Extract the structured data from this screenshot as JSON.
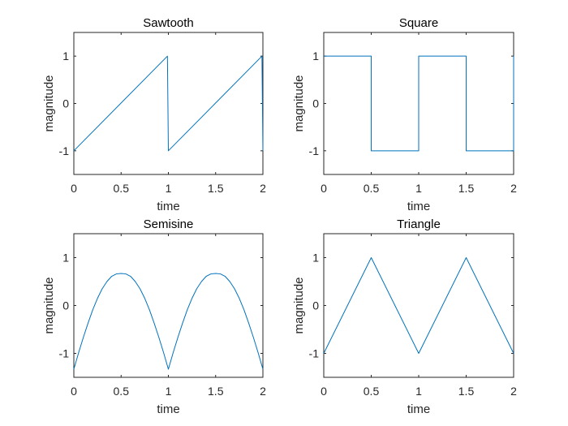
{
  "chart_data": [
    {
      "type": "line",
      "title": "Sawtooth",
      "xlabel": "time",
      "ylabel": "magnitude",
      "xlim": [
        0,
        2
      ],
      "ylim": [
        -1.5,
        1.5
      ],
      "xticks": [
        0,
        0.5,
        1,
        1.5,
        2
      ],
      "xtick_labels": [
        "0",
        "0.5",
        "1",
        "1.5",
        "2"
      ],
      "yticks": [
        -1,
        0,
        1
      ],
      "ytick_labels": [
        "-1",
        "0",
        "1"
      ],
      "grid": false,
      "color": "#0072BD",
      "series": [
        {
          "x": [
            0,
            0.99,
            1.0,
            1.99,
            2.0
          ],
          "y": [
            -1,
            1,
            -1,
            1,
            -1
          ]
        }
      ]
    },
    {
      "type": "line",
      "title": "Square",
      "xlabel": "time",
      "ylabel": "magnitude",
      "xlim": [
        0,
        2
      ],
      "ylim": [
        -1.5,
        1.5
      ],
      "xticks": [
        0,
        0.5,
        1,
        1.5,
        2
      ],
      "xtick_labels": [
        "0",
        "0.5",
        "1",
        "1.5",
        "2"
      ],
      "yticks": [
        -1,
        0,
        1
      ],
      "ytick_labels": [
        "-1",
        "0",
        "1"
      ],
      "grid": false,
      "color": "#0072BD",
      "series": [
        {
          "x": [
            0,
            0.5,
            0.5,
            1.0,
            1.0,
            1.5,
            1.5,
            2.0,
            2.0
          ],
          "y": [
            1,
            1,
            -1,
            -1,
            1,
            1,
            -1,
            -1,
            1
          ]
        }
      ]
    },
    {
      "type": "line",
      "title": "Semisine",
      "xlabel": "time",
      "ylabel": "magnitude",
      "xlim": [
        0,
        2
      ],
      "ylim": [
        -1.5,
        1.5
      ],
      "xticks": [
        0,
        0.5,
        1,
        1.5,
        2
      ],
      "xtick_labels": [
        "0",
        "0.5",
        "1",
        "1.5",
        "2"
      ],
      "yticks": [
        -1,
        0,
        1
      ],
      "ytick_labels": [
        "-1",
        "0",
        "1"
      ],
      "grid": false,
      "color": "#0072BD",
      "series": [
        {
          "x": [
            0,
            0.05,
            0.1,
            0.15,
            0.2,
            0.25,
            0.3,
            0.35,
            0.4,
            0.45,
            0.5,
            0.55,
            0.6,
            0.65,
            0.7,
            0.75,
            0.8,
            0.85,
            0.9,
            0.95,
            1.0,
            1.05,
            1.1,
            1.15,
            1.2,
            1.25,
            1.3,
            1.35,
            1.4,
            1.45,
            1.5,
            1.55,
            1.6,
            1.65,
            1.7,
            1.75,
            1.8,
            1.85,
            1.9,
            1.95,
            2.0
          ],
          "y": [
            -1.33,
            -0.99,
            -0.67,
            -0.37,
            -0.09,
            0.15,
            0.35,
            0.5,
            0.61,
            0.66,
            0.67,
            0.66,
            0.61,
            0.5,
            0.35,
            0.15,
            -0.09,
            -0.37,
            -0.67,
            -0.99,
            -1.33,
            -0.99,
            -0.67,
            -0.37,
            -0.09,
            0.15,
            0.35,
            0.5,
            0.61,
            0.66,
            0.67,
            0.66,
            0.61,
            0.5,
            0.35,
            0.15,
            -0.09,
            -0.37,
            -0.67,
            -0.99,
            -1.33
          ]
        }
      ]
    },
    {
      "type": "line",
      "title": "Triangle",
      "xlabel": "time",
      "ylabel": "magnitude",
      "xlim": [
        0,
        2
      ],
      "ylim": [
        -1.5,
        1.5
      ],
      "xticks": [
        0,
        0.5,
        1,
        1.5,
        2
      ],
      "xtick_labels": [
        "0",
        "0.5",
        "1",
        "1.5",
        "2"
      ],
      "yticks": [
        -1,
        0,
        1
      ],
      "ytick_labels": [
        "-1",
        "0",
        "1"
      ],
      "grid": false,
      "color": "#0072BD",
      "series": [
        {
          "x": [
            0,
            0.5,
            1.0,
            1.5,
            2.0
          ],
          "y": [
            -1,
            1,
            -1,
            1,
            -1
          ]
        }
      ]
    }
  ]
}
